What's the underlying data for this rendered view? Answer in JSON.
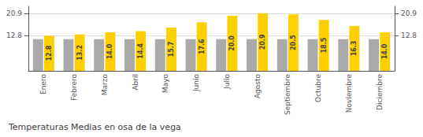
{
  "chart_data": {
    "type": "bar",
    "title": "Temperaturas Medias en osa de la vega",
    "categories": [
      "Enero",
      "Febrero",
      "Marzo",
      "Abril",
      "Mayo",
      "Junio",
      "Julio",
      "Agosto",
      "Septiembre",
      "Octubre",
      "Noviembre",
      "Diciembre"
    ],
    "series": [
      {
        "color": "#AAAAAA",
        "values": [
          11.5,
          11.5,
          11.5,
          11.5,
          11.5,
          11.5,
          11.5,
          11.5,
          11.5,
          11.5,
          11.5,
          11.5
        ]
      },
      {
        "color": "#FFD000",
        "values": [
          12.8,
          13.2,
          14.0,
          14.4,
          15.7,
          17.6,
          20.0,
          20.9,
          20.5,
          18.5,
          16.3,
          14.0
        ],
        "value_labels": [
          "12.8",
          "13.2",
          "14.0",
          "14.4",
          "15.7",
          "17.6",
          "20.0",
          "20.9",
          "20.5",
          "18.5",
          "16.3",
          "14.0"
        ],
        "data_labels": true
      }
    ],
    "ylim": [
      0,
      23.408
    ],
    "yticks": [
      12.8,
      20.9
    ],
    "y2lim": [
      0,
      23.408
    ],
    "y2ticks": [
      12.8,
      20.9
    ],
    "grid": true
  }
}
